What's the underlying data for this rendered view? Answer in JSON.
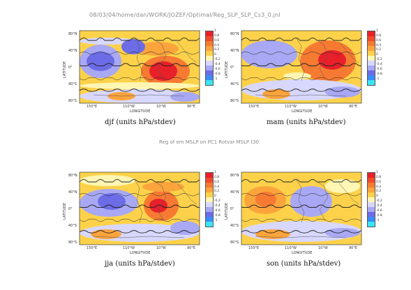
{
  "header": "08/03/04/home/dan/WORK/JOZEF/Optimal/Reg_SLP_SLP_Cs3_0.jnl",
  "subtitle": "Reg of em MSLP on PC1 Rotvar MSLP t30",
  "axis": {
    "ylabel": "LATITUDE",
    "xlabel": "LONGITUDE",
    "lat_ticks": [
      "80°N",
      "40°N",
      "0°",
      "40°S",
      "80°S"
    ],
    "lon_ticks": [
      "150°E",
      "110°W",
      "10°W",
      "90°E"
    ]
  },
  "colorbar": {
    "labels": [
      "1",
      "0.8",
      "0.6",
      "0.4",
      "0.2",
      "0",
      "-0.2",
      "-0.4",
      "-0.6",
      "-0.8",
      "-1"
    ],
    "colors": [
      "#e8202a",
      "#f04a2c",
      "#f67a32",
      "#fba43c",
      "#fdd24a",
      "#fff6b4",
      "#d8d8ff",
      "#a8a8f4",
      "#6c6ce6",
      "#3a8cf8",
      "#3ae6f4"
    ]
  },
  "panels": [
    {
      "id": "djf",
      "title": "djf (units hPa/stdev)"
    },
    {
      "id": "mam",
      "title": "mam (units hPa/stdev)"
    },
    {
      "id": "jja",
      "title": "jja (units hPa/stdev)"
    },
    {
      "id": "son",
      "title": "son (units hPa/stdev)"
    }
  ]
}
